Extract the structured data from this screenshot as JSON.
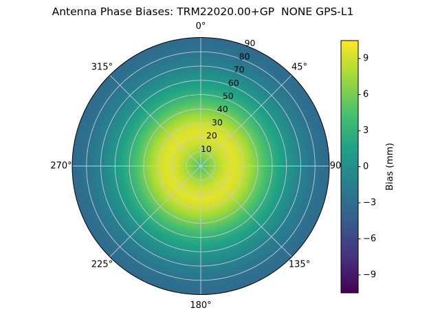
{
  "title": "Antenna Phase Biases: TRM22020.00+GP  NONE GPS-L1",
  "background_color": "#ffffff",
  "chart_data": {
    "type": "polar_contour",
    "title": "Antenna Phase Biases: TRM22020.00+GP  NONE GPS-L1",
    "azimuth_ticks": [
      {
        "angle": 0,
        "label": "0°"
      },
      {
        "angle": 45,
        "label": "45°"
      },
      {
        "angle": 90,
        "label": "90"
      },
      {
        "angle": 135,
        "label": "135°"
      },
      {
        "angle": 180,
        "label": "180°"
      },
      {
        "angle": 225,
        "label": "225°"
      },
      {
        "angle": 270,
        "label": "270°"
      },
      {
        "angle": 315,
        "label": "315°"
      }
    ],
    "radial_ticks": [
      10,
      20,
      30,
      40,
      50,
      60,
      70,
      80,
      90
    ],
    "radial_label_angle": 22.5,
    "zenith_max": 90,
    "profile": {
      "comment": "azimuthally symmetric phase-bias profile read from the rings, mm",
      "zenith": [
        0,
        5,
        10,
        15,
        20,
        25,
        30,
        35,
        40,
        45,
        50,
        55,
        60,
        65,
        70,
        75,
        80,
        85,
        90
      ],
      "bias_mm": [
        4.5,
        6.0,
        7.5,
        8.8,
        9.5,
        9.5,
        8.8,
        7.5,
        6.0,
        4.5,
        3.0,
        1.8,
        0.7,
        -0.3,
        -1.2,
        -1.9,
        -2.5,
        -2.9,
        -3.2
      ]
    },
    "colorbar": {
      "label": "Bias (mm)",
      "ticks": [
        {
          "value": 9,
          "label": "9"
        },
        {
          "value": 6,
          "label": "6"
        },
        {
          "value": 3,
          "label": "3"
        },
        {
          "value": 0,
          "label": "0"
        },
        {
          "value": -3,
          "label": "−3"
        },
        {
          "value": -6,
          "label": "−6"
        },
        {
          "value": -9,
          "label": "−9"
        }
      ],
      "vmin": -10.5,
      "vmax": 10.5,
      "colormap": "viridis"
    },
    "colormap_stops": [
      "#440154",
      "#46327e",
      "#365c8d",
      "#277f8e",
      "#1fa187",
      "#4ac16d",
      "#a0da39",
      "#fde725"
    ],
    "grid_color": "#c9c9d6",
    "outline_color": "#000000"
  }
}
